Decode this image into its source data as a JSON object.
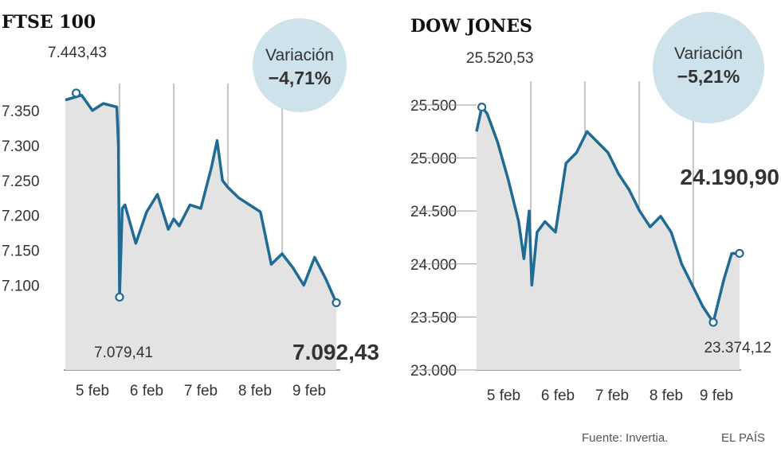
{
  "colors": {
    "line": "#1f6b94",
    "area": "#e3e3e3",
    "bubble": "#cde2ea",
    "grid": "#8c8c8c"
  },
  "source": "Fuente: Invertia.",
  "brand": "EL PAÍS",
  "chart_data": [
    {
      "type": "area",
      "title": "FTSE 100",
      "variation_label": "Variación",
      "variation_value": "−4,71%",
      "ylim": [
        7030,
        7400
      ],
      "y_ticks": [
        "7.350",
        "7.300",
        "7.250",
        "7.200",
        "7.150",
        "7.100"
      ],
      "y_tick_values": [
        7350,
        7300,
        7250,
        7200,
        7150,
        7100
      ],
      "x_ticks": [
        "5 feb",
        "6 feb",
        "7 feb",
        "8 feb",
        "9 feb"
      ],
      "x": [
        0,
        0.3,
        0.5,
        0.7,
        0.95,
        0.98,
        1.0,
        1.05,
        1.1,
        1.3,
        1.5,
        1.7,
        1.9,
        2.0,
        2.1,
        2.3,
        2.5,
        2.7,
        2.8,
        2.9,
        3.0,
        3.2,
        3.4,
        3.6,
        3.8,
        4.0,
        4.2,
        4.4,
        4.6,
        4.8,
        5.0
      ],
      "values": [
        7365,
        7372,
        7350,
        7360,
        7355,
        7300,
        7083,
        7210,
        7215,
        7160,
        7205,
        7230,
        7180,
        7195,
        7185,
        7215,
        7210,
        7270,
        7307,
        7250,
        7240,
        7225,
        7215,
        7205,
        7130,
        7145,
        7125,
        7100,
        7140,
        7110,
        7075
      ],
      "annotations": [
        {
          "text": "7.443,43",
          "x": 0.2,
          "y": 7375,
          "kind": "max"
        },
        {
          "text": "7.079,41",
          "x": 1.0,
          "y": 7083,
          "kind": "min"
        },
        {
          "text": "7.092,43",
          "x": 5.0,
          "y": 7075,
          "kind": "close"
        }
      ]
    },
    {
      "type": "area",
      "title": "DOW JONES",
      "variation_label": "Variación",
      "variation_value": "−5,21%",
      "ylim": [
        23000,
        25800
      ],
      "y_ticks": [
        "25.500",
        "25.000",
        "24.500",
        "24.000",
        "23.500",
        "23.000"
      ],
      "y_tick_values": [
        25500,
        25000,
        24500,
        24000,
        23500,
        23000
      ],
      "x_ticks": [
        "5 feb",
        "6 feb",
        "7 feb",
        "8 feb",
        "9 feb"
      ],
      "x": [
        0,
        0.1,
        0.2,
        0.4,
        0.6,
        0.8,
        0.9,
        1.0,
        1.05,
        1.15,
        1.3,
        1.5,
        1.7,
        1.9,
        2.1,
        2.3,
        2.5,
        2.7,
        2.9,
        3.1,
        3.3,
        3.5,
        3.7,
        3.9,
        4.1,
        4.3,
        4.5,
        4.7,
        4.85,
        5.0
      ],
      "values": [
        25250,
        25480,
        25420,
        25150,
        24800,
        24400,
        24050,
        24500,
        23800,
        24300,
        24400,
        24300,
        24950,
        25050,
        25250,
        25150,
        25050,
        24850,
        24700,
        24500,
        24350,
        24450,
        24300,
        24000,
        23800,
        23600,
        23450,
        23850,
        24100,
        24100
      ],
      "annotations": [
        {
          "text": "25.520,53",
          "x": 0.1,
          "y": 25480,
          "kind": "max"
        },
        {
          "text": "23.374,12",
          "x": 4.5,
          "y": 23450,
          "kind": "min"
        },
        {
          "text": "24.190,90",
          "x": 5.0,
          "y": 24100,
          "kind": "close"
        }
      ]
    }
  ]
}
